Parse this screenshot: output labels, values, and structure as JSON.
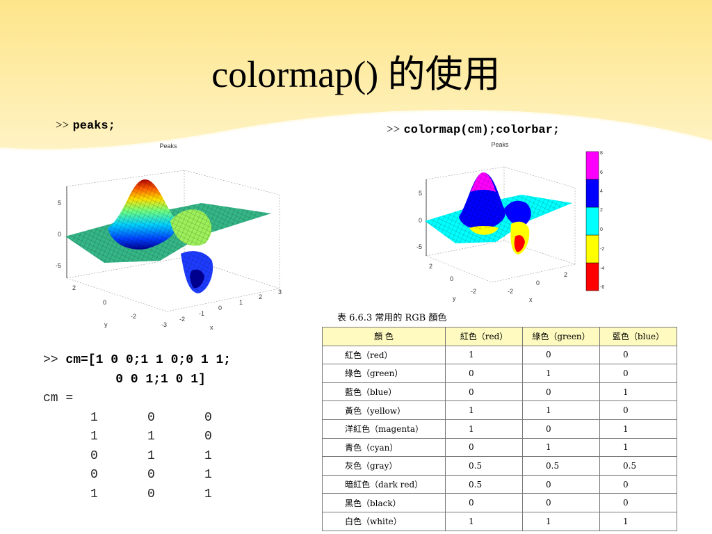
{
  "slide": {
    "title": "colormap() 的使用",
    "colors": {
      "banner": "#fde68a",
      "banner_light": "#fff7d0"
    }
  },
  "left_command": {
    "prompt": ">>",
    "code": "peaks;"
  },
  "right_command": {
    "prompt": ">>",
    "code": "colormap(cm);colorbar;"
  },
  "left_figure": {
    "title": "Peaks",
    "z_ticks": [
      "5",
      "0",
      "-5"
    ],
    "y_ticks": [
      "2",
      "0",
      "-2"
    ],
    "x_ticks": [
      "-3",
      "-2",
      "-1",
      "0",
      "1",
      "2",
      "3"
    ],
    "y_label": "y",
    "x_label": "x"
  },
  "right_figure": {
    "title": "Peaks",
    "z_ticks": [
      "5",
      "0",
      "-5"
    ],
    "y_ticks": [
      "2",
      "0",
      "-2"
    ],
    "x_ticks": [
      "-2",
      "0",
      "2"
    ],
    "y_label": "y",
    "x_label": "x",
    "colorbar_ticks": [
      "8",
      "6",
      "4",
      "2",
      "0",
      "-2",
      "-4",
      "-6"
    ],
    "colorbar_colors": [
      "#ff0000",
      "#ffff00",
      "#00ffff",
      "#0000ff",
      "#ff00ff"
    ]
  },
  "code": {
    "line1_prompt": ">> ",
    "line1_code": "cm=[1 0 0;1 1 0;0 1 1;",
    "line2_code": "    0 0 1;1 0 1]",
    "line3": "cm =",
    "matrix": [
      [
        "1",
        "0",
        "0"
      ],
      [
        "1",
        "1",
        "0"
      ],
      [
        "0",
        "1",
        "1"
      ],
      [
        "0",
        "0",
        "1"
      ],
      [
        "1",
        "0",
        "1"
      ]
    ]
  },
  "table": {
    "caption": "表 6.6.3   常用的 RGB 顏色",
    "headers": [
      "顏 色",
      "紅色（red）",
      "綠色（green）",
      "藍色（blue）"
    ],
    "rows": [
      [
        "紅色（red）",
        "1",
        "0",
        "0"
      ],
      [
        "綠色（green）",
        "0",
        "1",
        "0"
      ],
      [
        "藍色（blue）",
        "0",
        "0",
        "1"
      ],
      [
        "黃色（yellow）",
        "1",
        "1",
        "0"
      ],
      [
        "洋紅色（magenta）",
        "1",
        "0",
        "1"
      ],
      [
        "青色（cyan）",
        "0",
        "1",
        "1"
      ],
      [
        "灰色（gray）",
        "0.5",
        "0.5",
        "0.5"
      ],
      [
        "暗紅色（dark red）",
        "0.5",
        "0",
        "0"
      ],
      [
        "黑色（black）",
        "0",
        "0",
        "0"
      ],
      [
        "白色（white）",
        "1",
        "1",
        "1"
      ]
    ]
  }
}
